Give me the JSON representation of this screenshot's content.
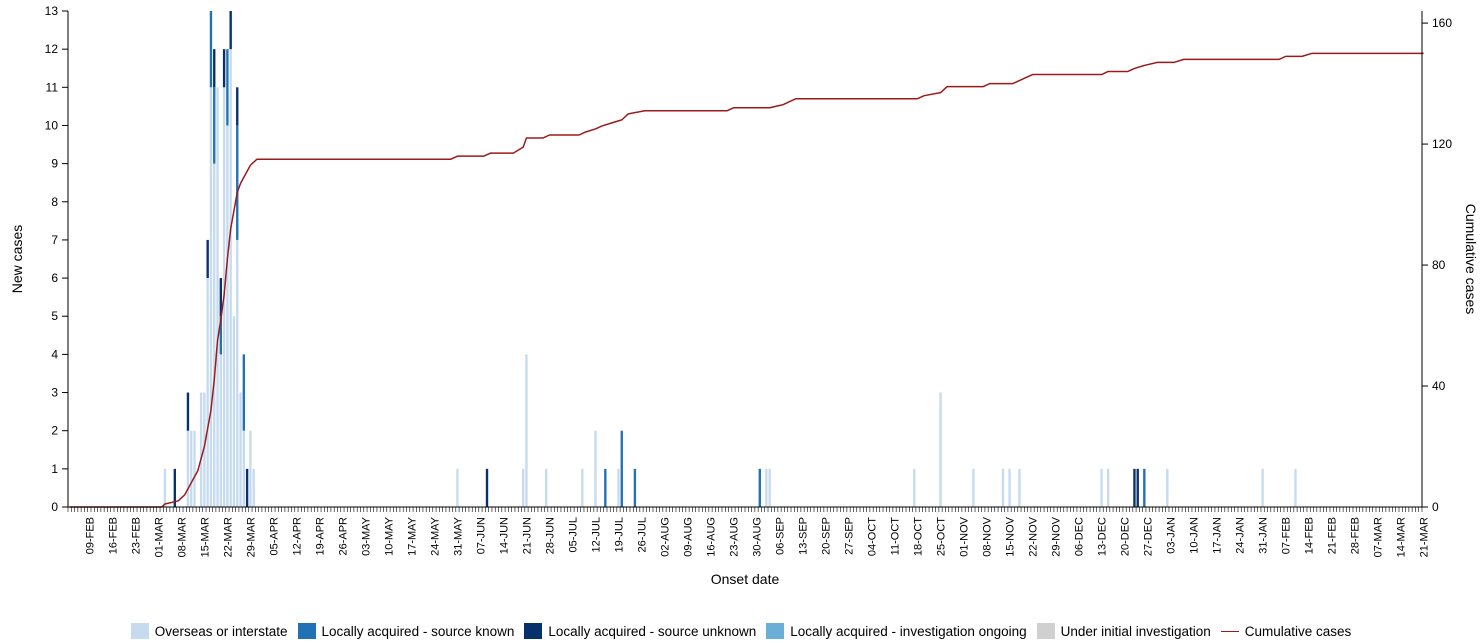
{
  "chart_data": {
    "type": "bar",
    "title": "",
    "xlabel": "Onset date",
    "ylabel": "New cases",
    "y2label": "Cumulative cases",
    "ylim": [
      0,
      13
    ],
    "y2lim": [
      0,
      164
    ],
    "y_ticks": [
      0,
      1,
      2,
      3,
      4,
      5,
      6,
      7,
      8,
      9,
      10,
      11,
      12,
      13
    ],
    "y2_ticks": [
      0,
      40,
      80,
      120,
      160
    ],
    "x_start": "2020-02-03",
    "x_days": 412,
    "x_tick_labels": [
      "09-FEB",
      "16-FEB",
      "23-FEB",
      "01-MAR",
      "08-MAR",
      "15-MAR",
      "22-MAR",
      "29-MAR",
      "05-APR",
      "12-APR",
      "19-APR",
      "26-APR",
      "03-MAY",
      "10-MAY",
      "17-MAY",
      "24-MAY",
      "31-MAY",
      "07-JUN",
      "14-JUN",
      "21-JUN",
      "28-JUN",
      "05-JUL",
      "12-JUL",
      "19-JUL",
      "26-JUL",
      "02-AUG",
      "09-AUG",
      "16-AUG",
      "23-AUG",
      "30-AUG",
      "06-SEP",
      "13-SEP",
      "20-SEP",
      "27-SEP",
      "04-OCT",
      "11-OCT",
      "18-OCT",
      "25-OCT",
      "01-NOV",
      "08-NOV",
      "15-NOV",
      "22-NOV",
      "29-NOV",
      "06-DEC",
      "13-DEC",
      "20-DEC",
      "27-DEC",
      "03-JAN",
      "10-JAN",
      "17-JAN",
      "24-JAN",
      "31-JAN",
      "07-FEB",
      "14-FEB",
      "21-FEB",
      "28-FEB",
      "07-MAR",
      "14-MAR",
      "21-MAR"
    ],
    "x_tick_days": [
      6,
      13,
      20,
      27,
      34,
      41,
      48,
      55,
      62,
      69,
      76,
      83,
      90,
      97,
      104,
      111,
      118,
      125,
      132,
      139,
      146,
      153,
      160,
      167,
      174,
      181,
      188,
      195,
      202,
      209,
      216,
      223,
      230,
      237,
      244,
      251,
      258,
      265,
      272,
      279,
      286,
      293,
      300,
      307,
      314,
      321,
      328,
      335,
      342,
      349,
      356,
      363,
      370,
      377,
      384,
      391,
      398,
      405,
      412
    ],
    "series": [
      {
        "name": "Overseas or interstate",
        "color": "#c6dbef",
        "points": [
          [
            29,
            1
          ],
          [
            36,
            2
          ],
          [
            37,
            2
          ],
          [
            38,
            2
          ],
          [
            40,
            3
          ],
          [
            41,
            3
          ],
          [
            42,
            6
          ],
          [
            43,
            11
          ],
          [
            44,
            9
          ],
          [
            45,
            11
          ],
          [
            46,
            4
          ],
          [
            47,
            11
          ],
          [
            48,
            10
          ],
          [
            49,
            12
          ],
          [
            50,
            5
          ],
          [
            51,
            7
          ],
          [
            52,
            3
          ],
          [
            53,
            2
          ],
          [
            55,
            2
          ],
          [
            56,
            1
          ],
          [
            118,
            1
          ],
          [
            138,
            1
          ],
          [
            139,
            4
          ],
          [
            145,
            1
          ],
          [
            156,
            1
          ],
          [
            160,
            2
          ],
          [
            167,
            1
          ],
          [
            212,
            1
          ],
          [
            213,
            1
          ],
          [
            257,
            1
          ],
          [
            265,
            3
          ],
          [
            275,
            1
          ],
          [
            284,
            1
          ],
          [
            286,
            1
          ],
          [
            289,
            1
          ],
          [
            314,
            1
          ],
          [
            316,
            1
          ],
          [
            334,
            1
          ],
          [
            363,
            1
          ],
          [
            373,
            1
          ]
        ]
      },
      {
        "name": "Locally acquired - source known",
        "color": "#2171b5",
        "points": [
          [
            43,
            2
          ],
          [
            44,
            2
          ],
          [
            46,
            1
          ],
          [
            48,
            2
          ],
          [
            51,
            3
          ],
          [
            53,
            2
          ],
          [
            163,
            1
          ],
          [
            168,
            2
          ],
          [
            172,
            1
          ],
          [
            210,
            1
          ],
          [
            327,
            1
          ]
        ]
      },
      {
        "name": "Locally acquired - source unknown",
        "color": "#08306b",
        "points": [
          [
            32,
            1
          ],
          [
            36,
            1
          ],
          [
            42,
            1
          ],
          [
            44,
            1
          ],
          [
            46,
            1
          ],
          [
            47,
            1
          ],
          [
            49,
            1
          ],
          [
            51,
            1
          ],
          [
            54,
            1
          ],
          [
            127,
            1
          ],
          [
            324,
            1
          ],
          [
            325,
            1
          ]
        ]
      },
      {
        "name": "Locally acquired - investigation ongoing",
        "color": "#6baed6",
        "points": []
      },
      {
        "name": "Under initial investigation",
        "color": "#d0d0d0",
        "points": []
      },
      {
        "name": "Cumulative cases",
        "color": "#9b1b1b",
        "type": "line",
        "points": [
          [
            0,
            0
          ],
          [
            28,
            0
          ],
          [
            29,
            1
          ],
          [
            33,
            2
          ],
          [
            35,
            4
          ],
          [
            37,
            8
          ],
          [
            39,
            12
          ],
          [
            41,
            20
          ],
          [
            43,
            32
          ],
          [
            44,
            42
          ],
          [
            45,
            55
          ],
          [
            46,
            62
          ],
          [
            47,
            70
          ],
          [
            48,
            82
          ],
          [
            49,
            92
          ],
          [
            50,
            98
          ],
          [
            51,
            104
          ],
          [
            52,
            107
          ],
          [
            53,
            109
          ],
          [
            54,
            111
          ],
          [
            55,
            113
          ],
          [
            56,
            114
          ],
          [
            57,
            115
          ],
          [
            116,
            115
          ],
          [
            118,
            116
          ],
          [
            126,
            116
          ],
          [
            128,
            117
          ],
          [
            135,
            117
          ],
          [
            138,
            119
          ],
          [
            139,
            122
          ],
          [
            144,
            122
          ],
          [
            146,
            123
          ],
          [
            155,
            123
          ],
          [
            157,
            124
          ],
          [
            160,
            125
          ],
          [
            162,
            126
          ],
          [
            165,
            127
          ],
          [
            168,
            128
          ],
          [
            170,
            130
          ],
          [
            175,
            131
          ],
          [
            200,
            131
          ],
          [
            202,
            132
          ],
          [
            213,
            132
          ],
          [
            217,
            133
          ],
          [
            219,
            134
          ],
          [
            221,
            135
          ],
          [
            258,
            135
          ],
          [
            260,
            136
          ],
          [
            265,
            137
          ],
          [
            267,
            139
          ],
          [
            278,
            139
          ],
          [
            280,
            140
          ],
          [
            287,
            140
          ],
          [
            289,
            141
          ],
          [
            291,
            142
          ],
          [
            293,
            143
          ],
          [
            314,
            143
          ],
          [
            316,
            144
          ],
          [
            322,
            144
          ],
          [
            324,
            145
          ],
          [
            327,
            146
          ],
          [
            331,
            147
          ],
          [
            336,
            147
          ],
          [
            339,
            148
          ],
          [
            368,
            148
          ],
          [
            370,
            149
          ],
          [
            375,
            149
          ],
          [
            378,
            150
          ],
          [
            412,
            150
          ]
        ]
      }
    ],
    "legend_position": "bottom",
    "grid": false
  }
}
